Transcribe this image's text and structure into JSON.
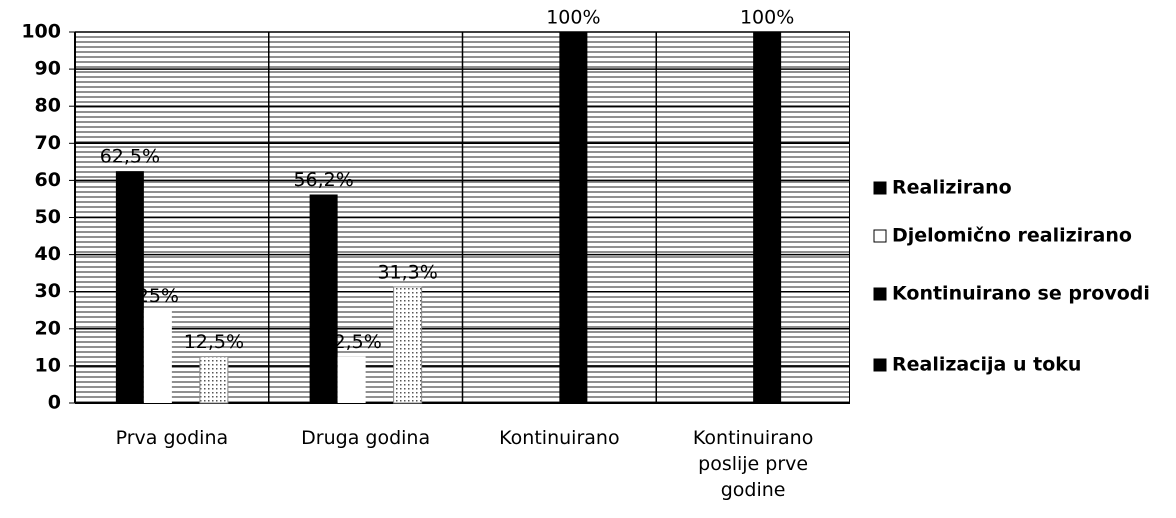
{
  "chart_data": {
    "type": "bar",
    "categories": [
      "Prva godina",
      "Druga godina",
      "Kontinuirano",
      "Kontinuirano poslije prve godine"
    ],
    "series": [
      {
        "name": "Realizirano",
        "color": "#000000",
        "values": [
          62.5,
          56.2,
          null,
          null
        ],
        "value_labels": [
          "62,5%",
          "56,2%",
          null,
          null
        ]
      },
      {
        "name": "Djelomično realizirano",
        "color": "#ffffff",
        "values": [
          25,
          12.5,
          null,
          null
        ],
        "value_labels": [
          "25%",
          "12,5%",
          null,
          null
        ]
      },
      {
        "name": "Kontinuirano se provodi",
        "color": "#000000",
        "values": [
          null,
          null,
          100,
          100
        ],
        "value_labels": [
          null,
          null,
          "100%",
          "100%"
        ]
      },
      {
        "name": "Realizacija u toku",
        "color": "#ffffff",
        "values": [
          12.5,
          31.3,
          null,
          null
        ],
        "value_labels": [
          "12,5%",
          "31,3%",
          null,
          null
        ]
      }
    ],
    "ylim": [
      0,
      100
    ],
    "yticks": [
      0,
      10,
      20,
      30,
      40,
      50,
      60,
      70,
      80,
      90,
      100
    ],
    "grid": true,
    "legend": "right"
  }
}
